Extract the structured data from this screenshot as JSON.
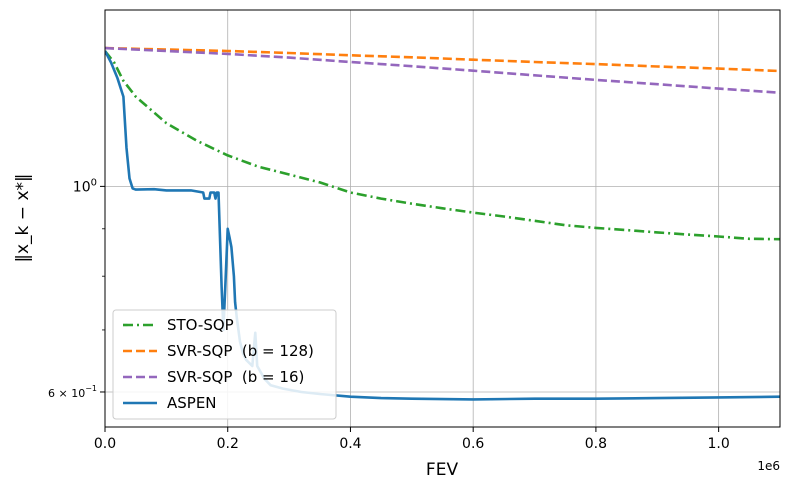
{
  "chart_data": {
    "type": "line",
    "xlabel": "FEV",
    "ylabel": "‖x_k − x*‖",
    "x_offset_label": "1e6",
    "xlim": [
      0,
      1100000
    ],
    "ylim": [
      0.55,
      1.55
    ],
    "yscale": "log",
    "grid": true,
    "legend_position": "lower-left",
    "x_ticks": [
      {
        "value": 0,
        "label": "0.0"
      },
      {
        "value": 200000,
        "label": "0.2"
      },
      {
        "value": 400000,
        "label": "0.4"
      },
      {
        "value": 600000,
        "label": "0.6"
      },
      {
        "value": 800000,
        "label": "0.8"
      },
      {
        "value": 1000000,
        "label": "1.0"
      }
    ],
    "y_ticks": [
      {
        "value": 1.0,
        "base": "10",
        "exp": "0"
      },
      {
        "value": 0.6,
        "base": "6 × 10",
        "exp": "−1"
      }
    ],
    "series": [
      {
        "name": "STO-SQP",
        "color": "#2ca02c",
        "style": "dashdot",
        "points": [
          [
            0,
            1.4
          ],
          [
            15000,
            1.36
          ],
          [
            30000,
            1.3
          ],
          [
            50000,
            1.25
          ],
          [
            100000,
            1.17
          ],
          [
            150000,
            1.12
          ],
          [
            200000,
            1.08
          ],
          [
            250000,
            1.05
          ],
          [
            300000,
            1.03
          ],
          [
            350000,
            1.01
          ],
          [
            400000,
            0.985
          ],
          [
            450000,
            0.97
          ],
          [
            500000,
            0.958
          ],
          [
            550000,
            0.947
          ],
          [
            600000,
            0.937
          ],
          [
            650000,
            0.928
          ],
          [
            700000,
            0.918
          ],
          [
            750000,
            0.908
          ],
          [
            800000,
            0.902
          ],
          [
            850000,
            0.897
          ],
          [
            900000,
            0.892
          ],
          [
            950000,
            0.887
          ],
          [
            1000000,
            0.883
          ],
          [
            1050000,
            0.878
          ],
          [
            1100000,
            0.877
          ]
        ]
      },
      {
        "name": "SVR-SQP  (b = 128)",
        "color": "#ff7f0e",
        "style": "dashed",
        "points": [
          [
            0,
            1.41
          ],
          [
            100000,
            1.405
          ],
          [
            200000,
            1.4
          ],
          [
            300000,
            1.393
          ],
          [
            400000,
            1.385
          ],
          [
            500000,
            1.378
          ],
          [
            600000,
            1.37
          ],
          [
            700000,
            1.362
          ],
          [
            800000,
            1.355
          ],
          [
            900000,
            1.347
          ],
          [
            1000000,
            1.34
          ],
          [
            1100000,
            1.332
          ]
        ]
      },
      {
        "name": "SVR-SQP  (b = 16)",
        "color": "#9467bd",
        "style": "dashed",
        "points": [
          [
            0,
            1.41
          ],
          [
            100000,
            1.4
          ],
          [
            200000,
            1.39
          ],
          [
            300000,
            1.377
          ],
          [
            400000,
            1.362
          ],
          [
            500000,
            1.348
          ],
          [
            600000,
            1.333
          ],
          [
            700000,
            1.318
          ],
          [
            800000,
            1.303
          ],
          [
            900000,
            1.289
          ],
          [
            1000000,
            1.275
          ],
          [
            1100000,
            1.262
          ]
        ]
      },
      {
        "name": "ASPEN",
        "color": "#1f77b4",
        "style": "solid",
        "points": [
          [
            0,
            1.4
          ],
          [
            10000,
            1.36
          ],
          [
            20000,
            1.31
          ],
          [
            30000,
            1.25
          ],
          [
            35000,
            1.1
          ],
          [
            40000,
            1.02
          ],
          [
            45000,
            0.995
          ],
          [
            50000,
            0.992
          ],
          [
            80000,
            0.993
          ],
          [
            100000,
            0.99
          ],
          [
            140000,
            0.99
          ],
          [
            160000,
            0.985
          ],
          [
            162000,
            0.97
          ],
          [
            170000,
            0.97
          ],
          [
            172000,
            0.985
          ],
          [
            178000,
            0.985
          ],
          [
            180000,
            0.97
          ],
          [
            182000,
            0.985
          ],
          [
            185000,
            0.985
          ],
          [
            190000,
            0.78
          ],
          [
            193000,
            0.7
          ],
          [
            196000,
            0.78
          ],
          [
            200000,
            0.9
          ],
          [
            203000,
            0.88
          ],
          [
            206000,
            0.86
          ],
          [
            210000,
            0.8
          ],
          [
            212000,
            0.75
          ],
          [
            215000,
            0.72
          ],
          [
            220000,
            0.68
          ],
          [
            225000,
            0.66
          ],
          [
            230000,
            0.65
          ],
          [
            240000,
            0.64
          ],
          [
            245000,
            0.695
          ],
          [
            248000,
            0.64
          ],
          [
            260000,
            0.62
          ],
          [
            270000,
            0.61
          ],
          [
            290000,
            0.605
          ],
          [
            320000,
            0.6
          ],
          [
            350000,
            0.597
          ],
          [
            400000,
            0.593
          ],
          [
            450000,
            0.591
          ],
          [
            500000,
            0.59
          ],
          [
            600000,
            0.589
          ],
          [
            700000,
            0.59
          ],
          [
            800000,
            0.59
          ],
          [
            900000,
            0.591
          ],
          [
            1000000,
            0.592
          ],
          [
            1100000,
            0.593
          ]
        ]
      }
    ]
  }
}
